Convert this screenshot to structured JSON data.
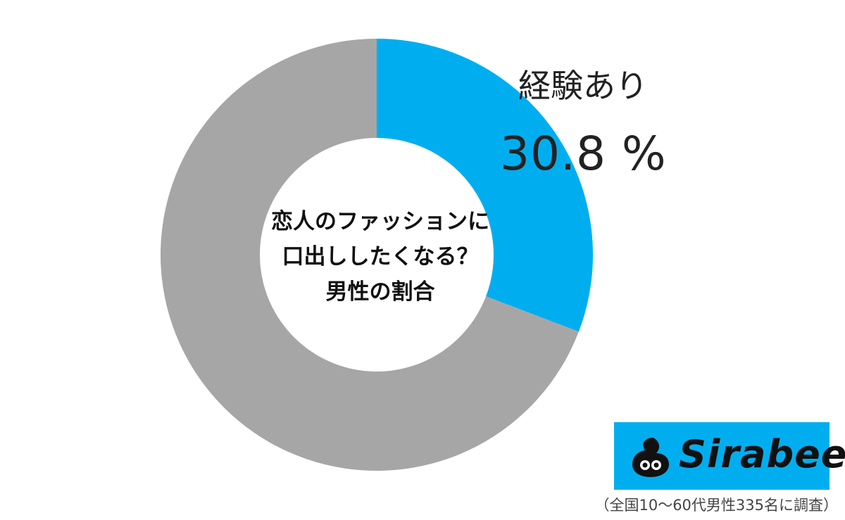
{
  "chart_data": {
    "type": "pie",
    "donut": true,
    "center_title": [
      "恋人のファッションに",
      "口出ししたくなる？",
      "男性の割合"
    ],
    "slices": [
      {
        "label": "経験あり",
        "value": 30.8,
        "value_text": "30.8 %",
        "color": "#00aeef"
      },
      {
        "value": 69.2,
        "color": "#a6a6a6"
      }
    ]
  },
  "logo": {
    "text": "Sirabee",
    "background": "#00aeef",
    "icon": "sirabee-logo-icon"
  },
  "footnote": "（全国10～60代男性335名に調査）"
}
